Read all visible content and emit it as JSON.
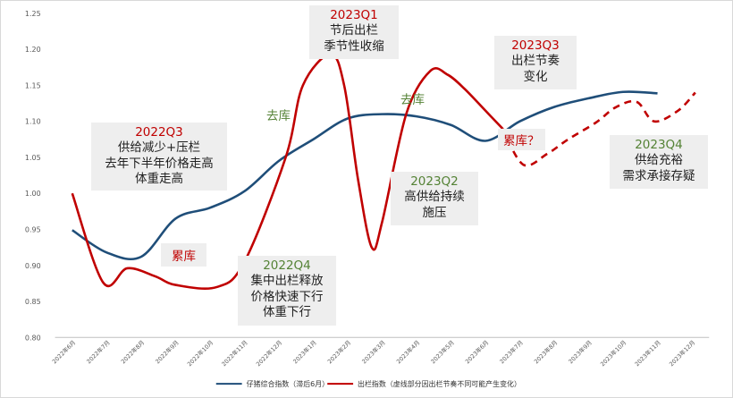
{
  "chart_data": {
    "type": "line",
    "title": "",
    "xlabel": "",
    "ylabel": "",
    "ylim": [
      0.8,
      1.25
    ],
    "yticks": [
      "0.80",
      "0.85",
      "0.90",
      "0.95",
      "1.00",
      "1.05",
      "1.10",
      "1.15",
      "1.20",
      "1.25"
    ],
    "categories": [
      "2022年6月",
      "2022年7月",
      "2022年8月",
      "2022年9月",
      "2022年10月",
      "2022年11月",
      "2022年12月",
      "2023年1月",
      "2023年2月",
      "2023年3月",
      "2023年4月",
      "2023年5月",
      "2023年6月",
      "2023年7月",
      "2023年8月",
      "2023年9月",
      "2023年10月",
      "2023年11月",
      "2023年12月"
    ],
    "grid": false,
    "legend_position": "bottom",
    "series": [
      {
        "name": "仔猪综合指数（滞后6月）",
        "color": "#1f4e79",
        "style": "solid",
        "points": [
          [
            0,
            0.949
          ],
          [
            1,
            0.918
          ],
          [
            2,
            0.912
          ],
          [
            3,
            0.965
          ],
          [
            4,
            0.98
          ],
          [
            5,
            1.003
          ],
          [
            6,
            1.045
          ],
          [
            7,
            1.075
          ],
          [
            8,
            1.104
          ],
          [
            9,
            1.11
          ],
          [
            10,
            1.107
          ],
          [
            11,
            1.095
          ],
          [
            12,
            1.073
          ],
          [
            13,
            1.1
          ],
          [
            14,
            1.12
          ],
          [
            15,
            1.132
          ],
          [
            16,
            1.141
          ],
          [
            17,
            1.139
          ]
        ]
      },
      {
        "name": "出栏指数（虚线部分因出栏节奏不同可能产生变化）",
        "color": "#c00000",
        "style": "solid-then-dashed",
        "points": [
          [
            0,
            1.0
          ],
          [
            0.9,
            0.876
          ],
          [
            1.6,
            0.896
          ],
          [
            2.4,
            0.885
          ],
          [
            3.0,
            0.873
          ],
          [
            4.2,
            0.87
          ],
          [
            5.0,
            0.905
          ],
          [
            6.2,
            1.05
          ],
          [
            6.7,
            1.15
          ],
          [
            7.5,
            1.193
          ],
          [
            7.9,
            1.15
          ],
          [
            8.3,
            1.02
          ],
          [
            8.7,
            0.925
          ],
          [
            9.0,
            0.96
          ],
          [
            9.7,
            1.11
          ],
          [
            10.4,
            1.17
          ],
          [
            10.9,
            1.165
          ],
          [
            11.4,
            1.145
          ],
          [
            12.0,
            1.115
          ],
          [
            12.5,
            1.09
          ]
        ],
        "dashed_points": [
          [
            12.5,
            1.09
          ],
          [
            13.1,
            1.04
          ],
          [
            13.8,
            1.055
          ],
          [
            14.4,
            1.075
          ],
          [
            15.2,
            1.098
          ],
          [
            15.8,
            1.12
          ],
          [
            16.4,
            1.127
          ],
          [
            16.9,
            1.1
          ],
          [
            17.6,
            1.115
          ],
          [
            18.1,
            1.14
          ]
        ]
      }
    ],
    "annotations": [
      {
        "id": "q3-2022",
        "title": "2022Q3",
        "lines": [
          "供给减少+压栏",
          "去年下半年价格走高",
          "体重走高"
        ]
      },
      {
        "id": "q1-2023",
        "title": "2023Q1",
        "lines": [
          "节后出栏",
          "季节性收缩"
        ]
      },
      {
        "id": "q3-2023",
        "title": "2023Q3",
        "lines": [
          "出栏节奏",
          "变化"
        ]
      },
      {
        "id": "q4-2022",
        "title": "2022Q4",
        "lines": [
          "集中出栏释放",
          "价格快速下行",
          "体重下行"
        ]
      },
      {
        "id": "q2-2023",
        "title": "2023Q2",
        "lines": [
          "高供给持续",
          "施压"
        ]
      },
      {
        "id": "q4-2023",
        "title": "2023Q4",
        "lines": [
          "供给充裕",
          "需求承接存疑"
        ]
      }
    ],
    "labels": [
      {
        "id": "label-accumulate-1",
        "text": "累库",
        "color": "#c00000"
      },
      {
        "id": "label-destock-1",
        "text": "去库",
        "color": "#548235"
      },
      {
        "id": "label-destock-2",
        "text": "去库",
        "color": "#548235"
      },
      {
        "id": "label-accumulate-2",
        "text": "累库？",
        "color": "#c00000"
      }
    ],
    "colors": {
      "title_red": "#c00000",
      "title_green": "#548235",
      "axis": "#bfbfbf"
    }
  }
}
